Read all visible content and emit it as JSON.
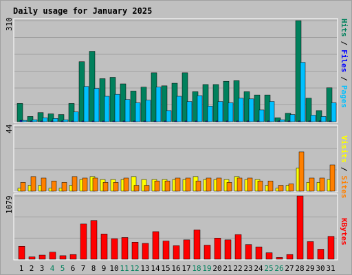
{
  "title": "Daily usage for January 2025",
  "colors": {
    "hits": "#00805C",
    "files": "#0000FF",
    "pages": "#00C0FF",
    "visits": "#FFFF00",
    "sites": "#FF8000",
    "kbytes": "#FF0000",
    "title": "#0000A0",
    "weekend": "#00805C",
    "weekday": "#000000",
    "panel": "#C0C0C0",
    "grid": "#A0A0A0"
  },
  "chart_data": [
    {
      "type": "bar",
      "categories": [
        "1",
        "2",
        "3",
        "4",
        "5",
        "6",
        "7",
        "8",
        "9",
        "10",
        "11",
        "12",
        "13",
        "14",
        "15",
        "16",
        "17",
        "18",
        "19",
        "20",
        "21",
        "22",
        "23",
        "24",
        "25",
        "26",
        "27",
        "28",
        "29",
        "30",
        "31"
      ],
      "weekend_days": [
        "4",
        "5",
        "11",
        "12",
        "18",
        "19",
        "25",
        "26"
      ],
      "ymax_label": "310",
      "ylim": [
        0,
        310
      ],
      "series": [
        {
          "name": "Hits",
          "values": [
            56,
            16,
            28,
            24,
            22,
            56,
            184,
            216,
            132,
            136,
            116,
            94,
            106,
            150,
            110,
            118,
            150,
            92,
            114,
            114,
            124,
            126,
            92,
            82,
            82,
            12,
            26,
            310,
            72,
            34,
            104
          ]
        },
        {
          "name": "Files",
          "values": [
            4,
            2,
            2,
            2,
            2,
            2,
            2,
            2,
            2,
            2,
            2,
            2,
            2,
            2,
            2,
            2,
            2,
            2,
            2,
            2,
            2,
            2,
            2,
            2,
            2,
            2,
            2,
            2,
            2,
            2,
            2
          ]
        },
        {
          "name": "Pages",
          "values": [
            4,
            6,
            12,
            10,
            6,
            30,
            108,
            102,
            78,
            84,
            68,
            58,
            66,
            106,
            34,
            78,
            62,
            80,
            48,
            62,
            58,
            72,
            70,
            36,
            62,
            6,
            22,
            182,
            20,
            16,
            58
          ]
        }
      ]
    },
    {
      "type": "bar",
      "categories": [
        "1",
        "2",
        "3",
        "4",
        "5",
        "6",
        "7",
        "8",
        "9",
        "10",
        "11",
        "12",
        "13",
        "14",
        "15",
        "16",
        "17",
        "18",
        "19",
        "20",
        "21",
        "22",
        "23",
        "24",
        "25",
        "26",
        "27",
        "28",
        "29",
        "30",
        "31"
      ],
      "ymax_label": "44",
      "ylim": [
        0,
        44
      ],
      "series": [
        {
          "name": "Visits",
          "values": [
            2,
            4,
            4,
            2,
            2,
            4,
            8,
            10,
            8,
            8,
            8,
            10,
            8,
            8,
            8,
            8,
            8,
            10,
            8,
            8,
            8,
            10,
            8,
            8,
            4,
            2,
            4,
            16,
            6,
            6,
            8
          ]
        },
        {
          "name": "Sites",
          "values": [
            6,
            10,
            9,
            7,
            6,
            10,
            9,
            9,
            6,
            6,
            9,
            4,
            4,
            7,
            7,
            9,
            9,
            7,
            9,
            9,
            6,
            9,
            9,
            7,
            7,
            4,
            5,
            27,
            9,
            9,
            18
          ]
        }
      ]
    },
    {
      "type": "bar",
      "categories": [
        "1",
        "2",
        "3",
        "4",
        "5",
        "6",
        "7",
        "8",
        "9",
        "10",
        "11",
        "12",
        "13",
        "14",
        "15",
        "16",
        "17",
        "18",
        "19",
        "20",
        "21",
        "22",
        "23",
        "24",
        "25",
        "26",
        "27",
        "28",
        "29",
        "30",
        "31"
      ],
      "ymax_label": "1079",
      "ylim": [
        0,
        1079
      ],
      "series": [
        {
          "name": "KBytes",
          "values": [
            220,
            40,
            70,
            120,
            60,
            80,
            600,
            660,
            430,
            350,
            370,
            290,
            270,
            470,
            310,
            230,
            330,
            500,
            240,
            360,
            330,
            420,
            250,
            210,
            110,
            30,
            80,
            1079,
            300,
            170,
            390
          ]
        }
      ]
    }
  ],
  "legend": {
    "top_hits": "Hits",
    "top_files": "Files",
    "top_pages": "Pages",
    "mid_visits": "Visits",
    "mid_sites": "Sites",
    "bot_kbytes": "KBytes",
    "sep": "/"
  }
}
